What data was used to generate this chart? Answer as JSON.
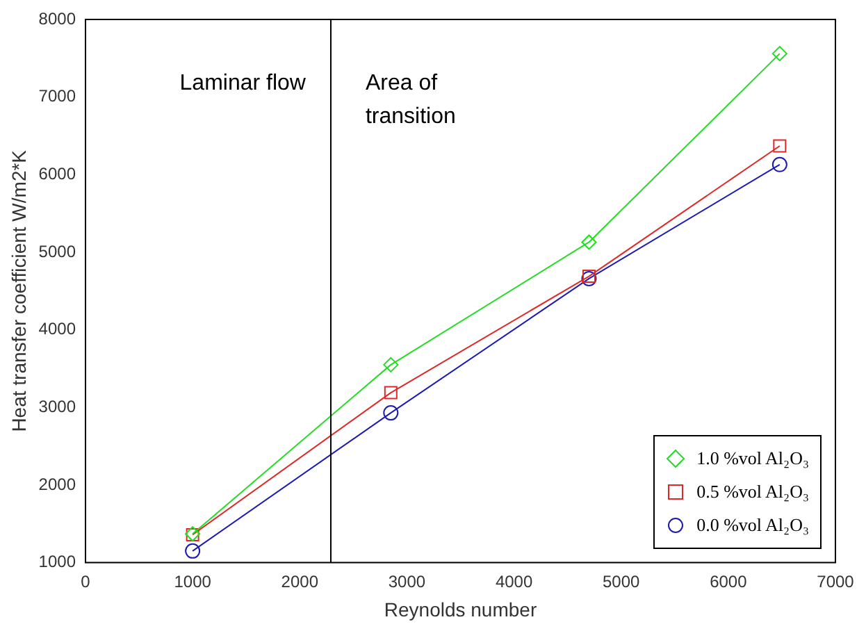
{
  "chart_data": {
    "type": "line",
    "xlabel": "Reynolds number",
    "ylabel": "Heat transfer coefficient W/m2*K",
    "x": [
      1000,
      2850,
      4700,
      6480
    ],
    "series": [
      {
        "name": "1.0 %vol Al₂O₃",
        "color": "#22dd22",
        "marker": "diamond",
        "values": [
          1370,
          3550,
          5130,
          7560
        ]
      },
      {
        "name": "0.5 %vol Al₂O₃",
        "color": "#e02828",
        "marker": "square",
        "values": [
          1360,
          3190,
          4690,
          6370
        ]
      },
      {
        "name": "0.0 %vol Al₂O₃",
        "color": "#1c1cb4",
        "marker": "circle",
        "values": [
          1150,
          2930,
          4660,
          6130
        ]
      }
    ],
    "xlim": [
      0,
      7000
    ],
    "xticks": [
      0,
      1000,
      2000,
      3000,
      4000,
      5000,
      6000,
      7000
    ],
    "ylim": [
      1000,
      8000
    ],
    "yticks": [
      1000,
      2000,
      3000,
      4000,
      5000,
      6000,
      7000,
      8000
    ],
    "grid": false,
    "legend": "bottom right",
    "line_style": "solid",
    "ref_lines": [
      {
        "axis": "x",
        "value": 2290,
        "color": "#000000"
      }
    ],
    "annotations": [
      "Laminar flow",
      "Area of transition"
    ]
  }
}
